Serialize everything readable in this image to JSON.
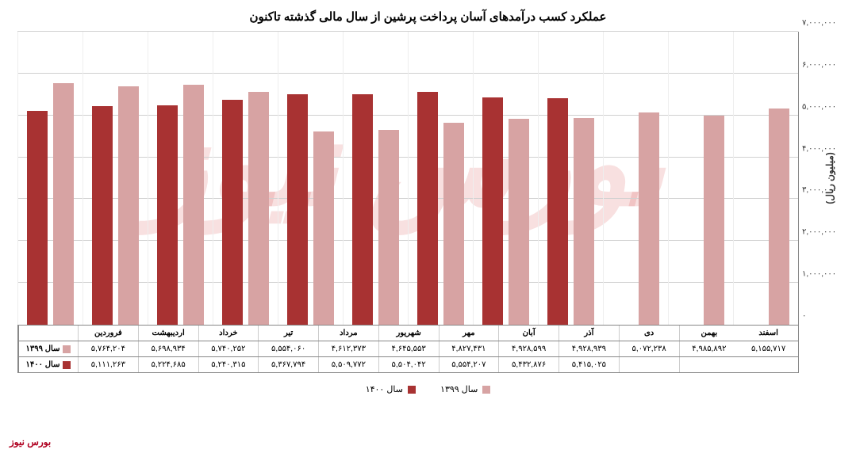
{
  "chart": {
    "title": "عملکرد کسب درآمدهای آسان پرداخت پرشین از سال مالی گذشته تاکنون",
    "yaxis_title": "(میلیون ریال)",
    "ylim_max": 7000000,
    "ytick_step": 1000000,
    "yticks": [
      {
        "v": 0,
        "label": "۰"
      },
      {
        "v": 1000000,
        "label": "۱,۰۰۰,۰۰۰"
      },
      {
        "v": 2000000,
        "label": "۲,۰۰۰,۰۰۰"
      },
      {
        "v": 3000000,
        "label": "۳,۰۰۰,۰۰۰"
      },
      {
        "v": 4000000,
        "label": "۴,۰۰۰,۰۰۰"
      },
      {
        "v": 5000000,
        "label": "۵,۰۰۰,۰۰۰"
      },
      {
        "v": 6000000,
        "label": "۶,۰۰۰,۰۰۰"
      },
      {
        "v": 7000000,
        "label": "۷,۰۰۰,۰۰۰"
      }
    ],
    "categories": [
      "فروردین",
      "اردیبهشت",
      "خرداد",
      "تیر",
      "مرداد",
      "شهریور",
      "مهر",
      "آبان",
      "آذر",
      "دی",
      "بهمن",
      "اسفند"
    ],
    "series": [
      {
        "name": "سال ۱۳۹۹",
        "key": "1399",
        "color": "#d7a3a3",
        "values": [
          5764204,
          5698934,
          5740252,
          5554060,
          4612373,
          4645553,
          4827431,
          4928599,
          4928939,
          5072238,
          4985892,
          5155717
        ],
        "labels": [
          "۵,۷۶۴,۲۰۴",
          "۵,۶۹۸,۹۳۴",
          "۵,۷۴۰,۲۵۲",
          "۵,۵۵۴,۰۶۰",
          "۴,۶۱۲,۳۷۳",
          "۴,۶۴۵,۵۵۳",
          "۴,۸۲۷,۴۳۱",
          "۴,۹۲۸,۵۹۹",
          "۴,۹۲۸,۹۳۹",
          "۵,۰۷۲,۲۳۸",
          "۴,۹۸۵,۸۹۲",
          "۵,۱۵۵,۷۱۷"
        ]
      },
      {
        "name": "سال ۱۴۰۰",
        "key": "1400",
        "color": "#a83232",
        "values": [
          5111263,
          5224685,
          5240315,
          5367794,
          5509772,
          5504042,
          5554207,
          5432876,
          5415025,
          null,
          null,
          null
        ],
        "labels": [
          "۵,۱۱۱,۲۶۳",
          "۵,۲۲۴,۶۸۵",
          "۵,۲۴۰,۳۱۵",
          "۵,۳۶۷,۷۹۴",
          "۵,۵۰۹,۷۷۲",
          "۵,۵۰۴,۰۴۲",
          "۵,۵۵۴,۲۰۷",
          "۵,۴۳۲,۸۷۶",
          "۵,۴۱۵,۰۲۵",
          "",
          "",
          ""
        ]
      }
    ],
    "background_color": "#ffffff",
    "grid_color": "#d0d0d0"
  },
  "footer": "بورس نیوز",
  "watermark": "بورس نیوز"
}
